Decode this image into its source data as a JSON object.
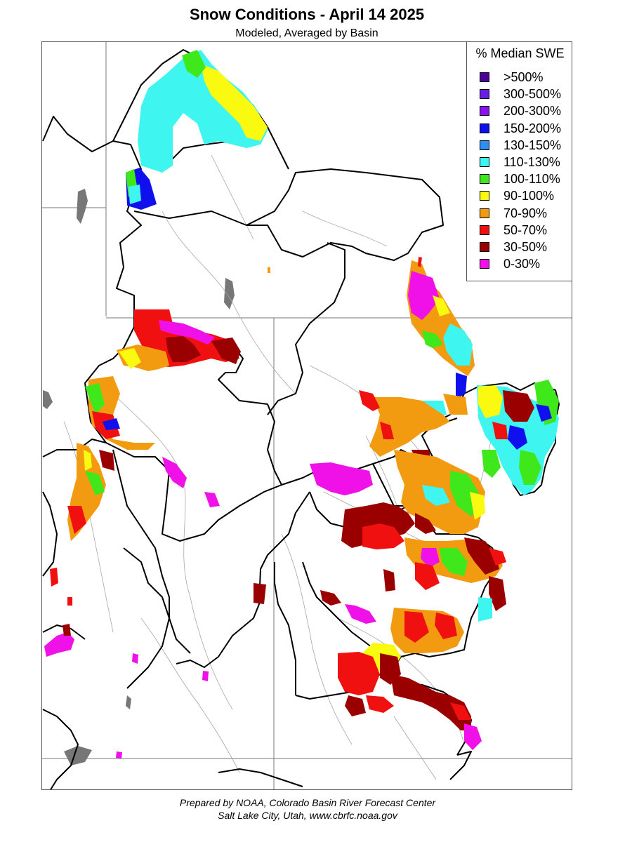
{
  "title": "Snow Conditions - April 14 2025",
  "subtitle": "Modeled, Averaged by Basin",
  "legend": {
    "title": "% Median SWE",
    "items": [
      {
        "label": ">500%",
        "color": "#4B0096"
      },
      {
        "label": "300-500%",
        "color": "#6A1FE0"
      },
      {
        "label": "200-300%",
        "color": "#8C10F0"
      },
      {
        "label": "150-200%",
        "color": "#1010EE"
      },
      {
        "label": "130-150%",
        "color": "#2E8FF0"
      },
      {
        "label": "110-130%",
        "color": "#3FF5F0"
      },
      {
        "label": "100-110%",
        "color": "#3EE81A"
      },
      {
        "label": "90-100%",
        "color": "#FAFA10"
      },
      {
        "label": "70-90%",
        "color": "#F29A10"
      },
      {
        "label": "50-70%",
        "color": "#F01010"
      },
      {
        "label": "30-50%",
        "color": "#9A0000"
      },
      {
        "label": "0-30%",
        "color": "#F010E8"
      }
    ]
  },
  "credit": {
    "line1": "Prepared by NOAA, Colorado Basin River Forecast Center",
    "line2": "Salt Lake City, Utah, www.cbrfc.noaa.gov"
  }
}
